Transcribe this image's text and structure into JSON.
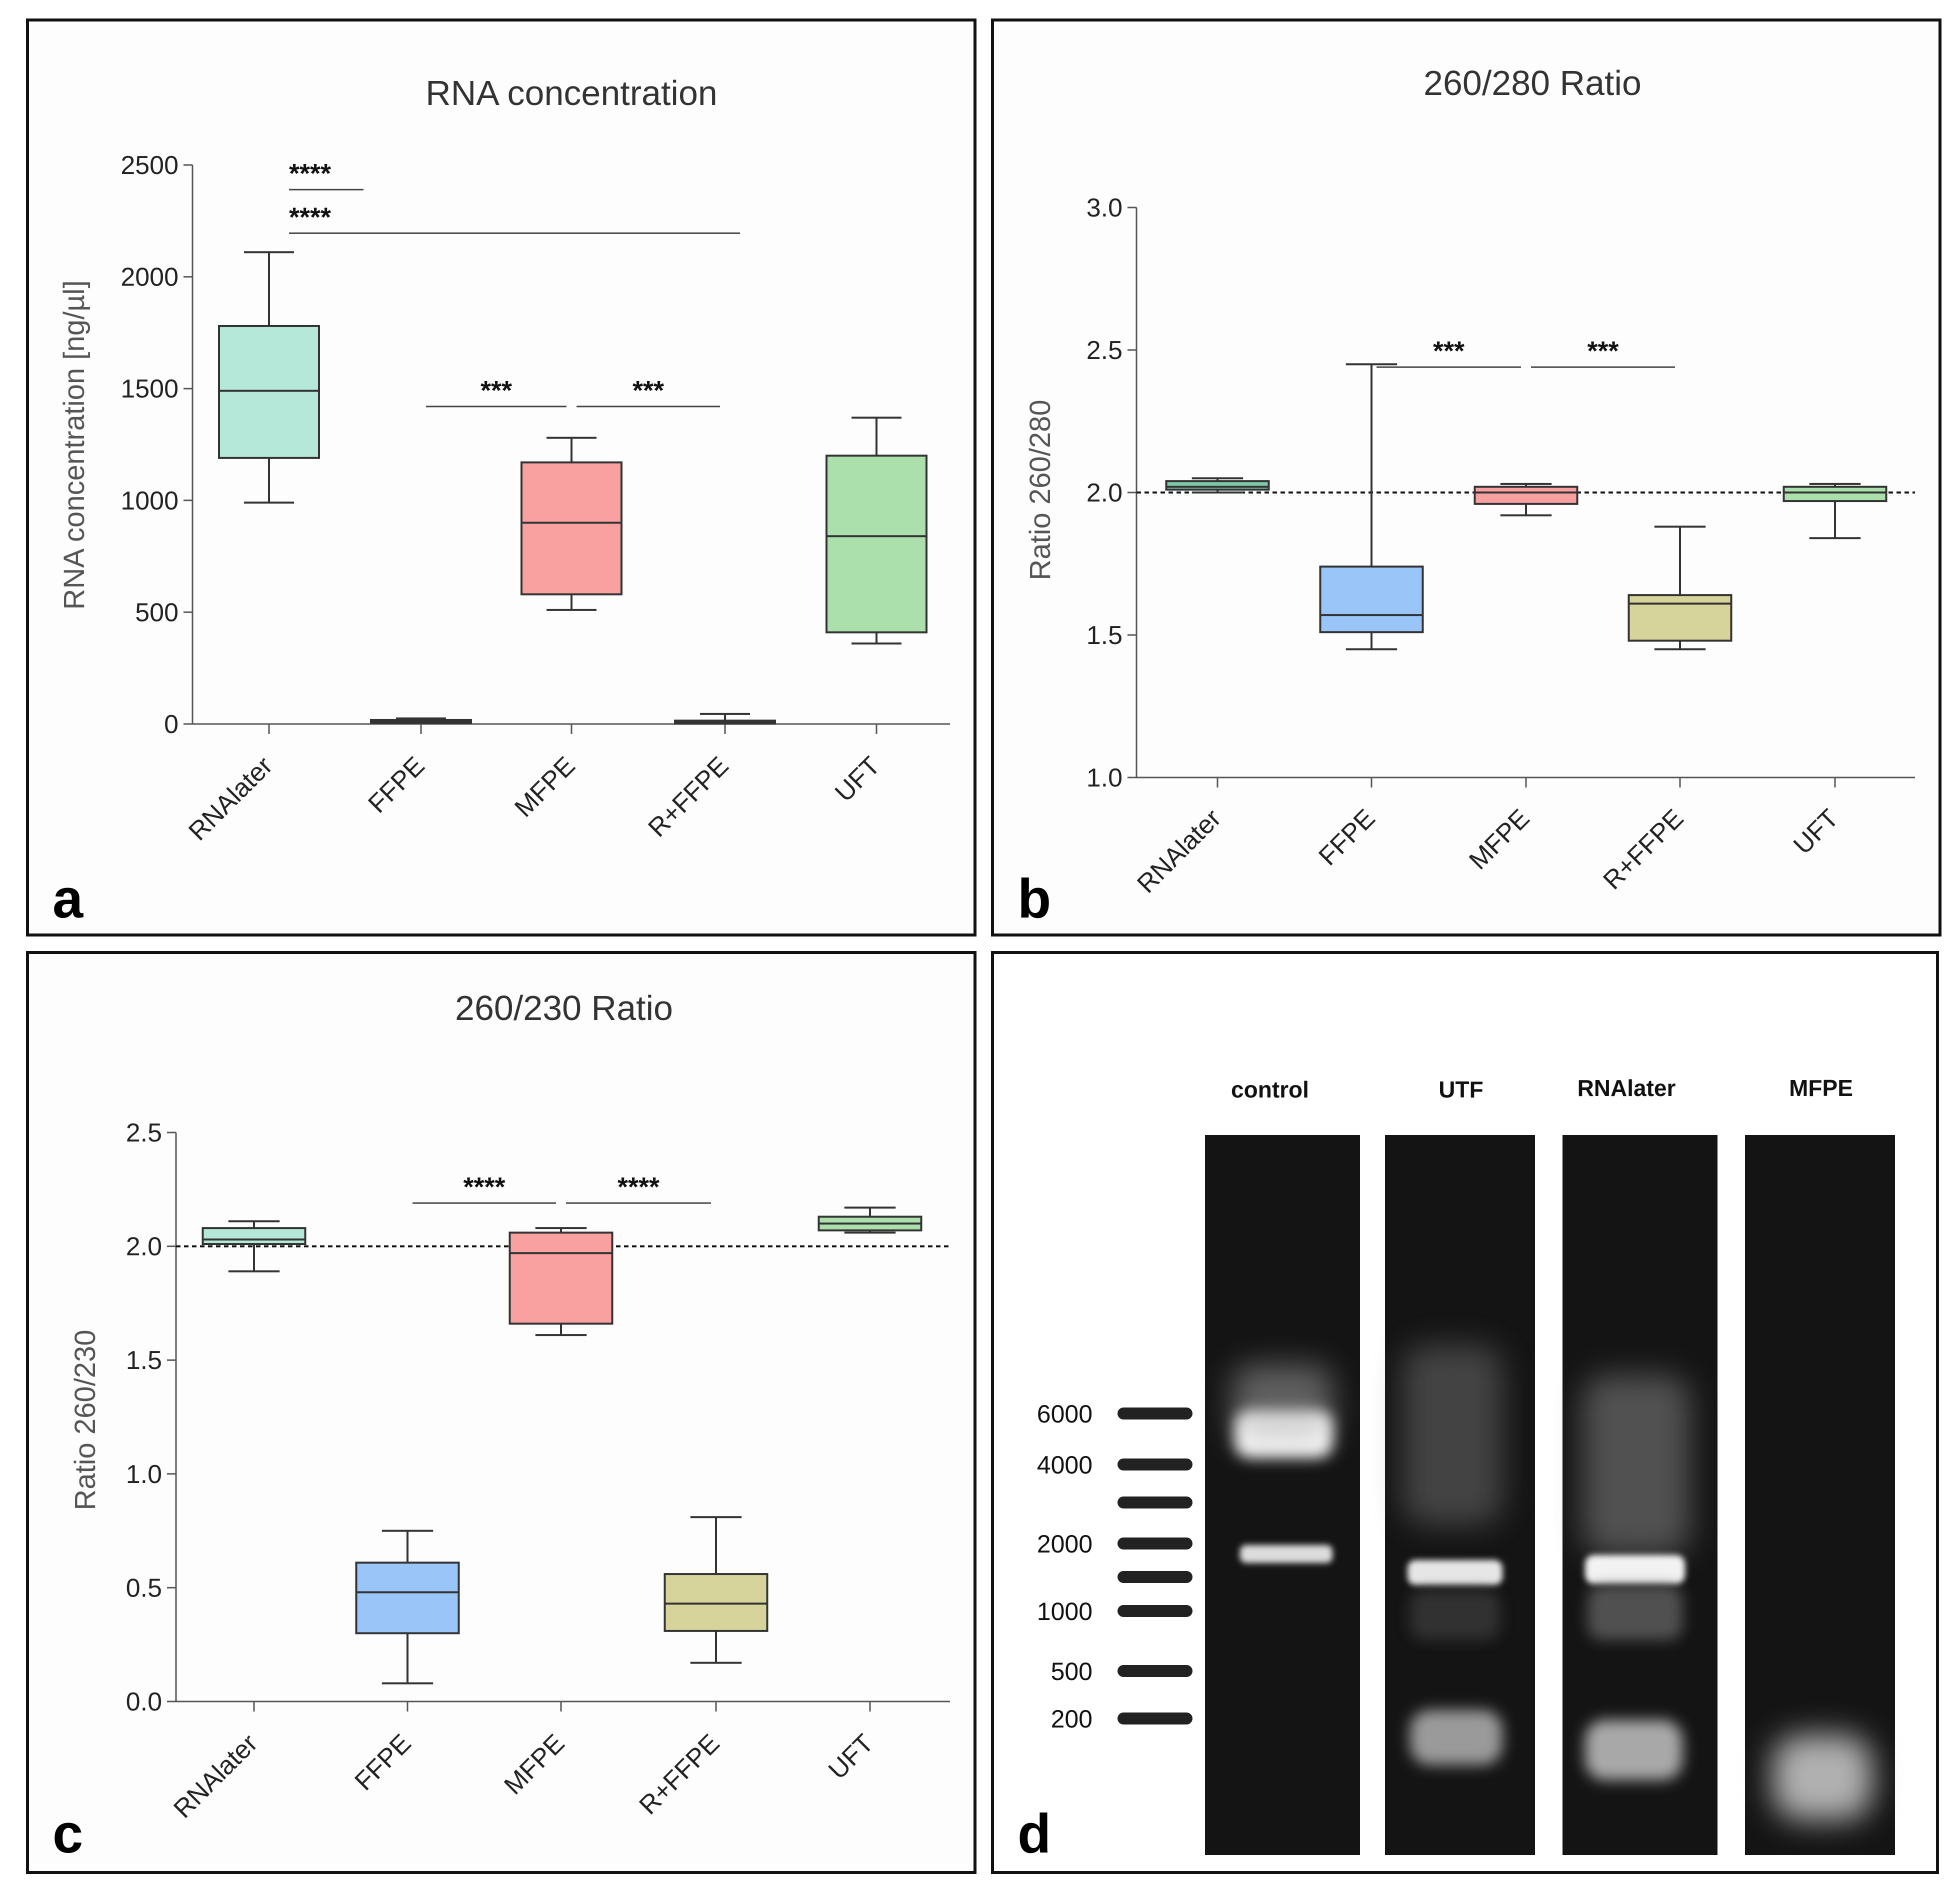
{
  "panels": {
    "a": {
      "letter": "a"
    },
    "b": {
      "letter": "b"
    },
    "c": {
      "letter": "c"
    },
    "d": {
      "letter": "d"
    }
  },
  "colors": {
    "RNAlater": "#b5e8d8",
    "FFPE": "#9ac5f8",
    "MFPE": "#f9a0a0",
    "R+FFPE": "#d6d49a",
    "UFT": "#abdfab",
    "RNAlater_b": "#7fc7a9"
  },
  "chart_data": [
    {
      "type": "box",
      "title": "RNA concentration",
      "ylabel": "RNA concentration [ng/µl]",
      "ylim": [
        0,
        2500
      ],
      "yticks": [
        0,
        500,
        1000,
        1500,
        2000,
        2500
      ],
      "ytick_labels": [
        "0",
        "500",
        "1000",
        "1500",
        "2000",
        "2500"
      ],
      "categories": [
        "RNAlater",
        "FFPE",
        "MFPE",
        "R+FFPE",
        "UFT"
      ],
      "boxes": [
        {
          "min": 990,
          "q1": 1190,
          "median": 1490,
          "q3": 1780,
          "max": 2110
        },
        {
          "min": 5,
          "q1": 8,
          "median": 12,
          "q3": 18,
          "max": 25
        },
        {
          "min": 510,
          "q1": 580,
          "median": 900,
          "q3": 1170,
          "max": 1280
        },
        {
          "min": 3,
          "q1": 5,
          "median": 9,
          "q3": 15,
          "max": 45
        },
        {
          "min": 360,
          "q1": 410,
          "median": 840,
          "q3": 1200,
          "max": 1370
        }
      ],
      "reference_line": null,
      "significance": [
        {
          "from": 0,
          "to": 1,
          "y": 2390,
          "label": "****"
        },
        {
          "from": 0,
          "to": 3,
          "y": 2195,
          "label": "****"
        },
        {
          "from": 1,
          "to": 2,
          "y": 1420,
          "label": "***"
        },
        {
          "from": 2,
          "to": 3,
          "y": 1420,
          "label": "***"
        }
      ]
    },
    {
      "type": "box",
      "title": "260/280 Ratio",
      "ylabel": "Ratio 260/280",
      "ylim": [
        1.0,
        3.0
      ],
      "yticks": [
        1.0,
        1.5,
        2.0,
        2.5,
        3.0
      ],
      "ytick_labels": [
        "1.0",
        "1.5",
        "2.0",
        "2.5",
        "3.0"
      ],
      "categories": [
        "RNAlater",
        "FFPE",
        "MFPE",
        "R+FFPE",
        "UFT"
      ],
      "boxes": [
        {
          "min": 2.0,
          "q1": 2.01,
          "median": 2.02,
          "q3": 2.04,
          "max": 2.05
        },
        {
          "min": 1.45,
          "q1": 1.51,
          "median": 1.57,
          "q3": 1.74,
          "max": 2.45
        },
        {
          "min": 1.92,
          "q1": 1.96,
          "median": 2.0,
          "q3": 2.02,
          "max": 2.03
        },
        {
          "min": 1.45,
          "q1": 1.48,
          "median": 1.61,
          "q3": 1.64,
          "max": 1.88
        },
        {
          "min": 1.84,
          "q1": 1.97,
          "median": 2.0,
          "q3": 2.02,
          "max": 2.03
        }
      ],
      "reference_line": 2.0,
      "significance": [
        {
          "from": 1,
          "to": 2,
          "y": 2.44,
          "label": "***"
        },
        {
          "from": 2,
          "to": 3,
          "y": 2.44,
          "label": "***"
        }
      ]
    },
    {
      "type": "box",
      "title": "260/230 Ratio",
      "ylabel": "Ratio 260/230",
      "ylim": [
        0.0,
        2.5
      ],
      "yticks": [
        0.0,
        0.5,
        1.0,
        1.5,
        2.0,
        2.5
      ],
      "ytick_labels": [
        "0.0",
        "0.5",
        "1.0",
        "1.5",
        "2.0",
        "2.5"
      ],
      "categories": [
        "RNAlater",
        "FFPE",
        "MFPE",
        "R+FFPE",
        "UFT"
      ],
      "boxes": [
        {
          "min": 1.89,
          "q1": 2.01,
          "median": 2.03,
          "q3": 2.08,
          "max": 2.11
        },
        {
          "min": 0.08,
          "q1": 0.3,
          "median": 0.48,
          "q3": 0.61,
          "max": 0.75
        },
        {
          "min": 1.61,
          "q1": 1.66,
          "median": 1.97,
          "q3": 2.06,
          "max": 2.08
        },
        {
          "min": 0.17,
          "q1": 0.31,
          "median": 0.43,
          "q3": 0.56,
          "max": 0.81
        },
        {
          "min": 2.06,
          "q1": 2.07,
          "median": 2.1,
          "q3": 2.13,
          "max": 2.17
        }
      ],
      "reference_line": 2.0,
      "significance": [
        {
          "from": 1,
          "to": 2,
          "y": 2.19,
          "label": "****"
        },
        {
          "from": 2,
          "to": 3,
          "y": 2.19,
          "label": "****"
        }
      ]
    }
  ],
  "gel": {
    "lanes": [
      "control",
      "UTF",
      "RNAlater",
      "MFPE"
    ],
    "ladder": [
      "6000",
      "4000",
      "2000",
      "1000",
      "500",
      "200"
    ]
  }
}
